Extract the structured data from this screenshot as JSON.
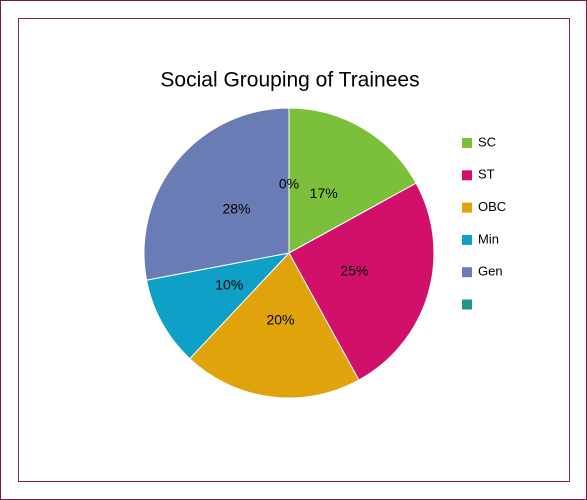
{
  "chart_data": {
    "type": "pie",
    "title": "Social Grouping of Trainees",
    "categories": [
      "SC",
      "ST",
      "OBC",
      "Min",
      "Gen",
      null
    ],
    "values": [
      17,
      25,
      20,
      10,
      28,
      0
    ],
    "value_labels": [
      "17%",
      "25%",
      "20%",
      "10%",
      "28%",
      "0%"
    ],
    "colors": [
      "#7bbf3a",
      "#d0106a",
      "#e0a30c",
      "#0ea0c6",
      "#6a7cb6",
      "#1a9a86"
    ],
    "legend": "right"
  }
}
